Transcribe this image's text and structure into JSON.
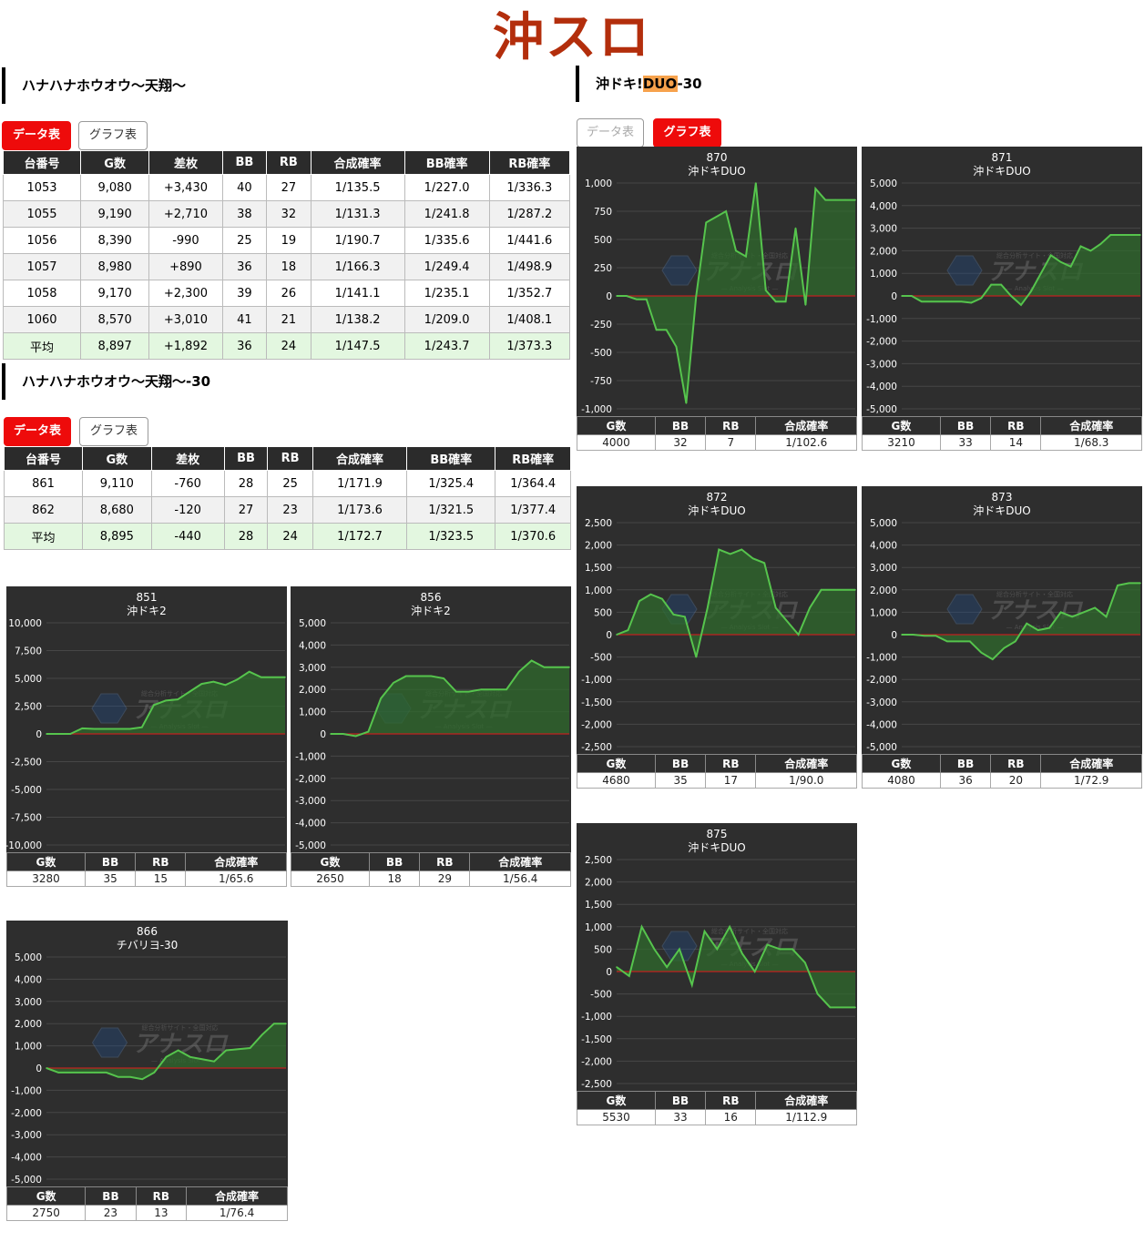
{
  "page_title": "沖スロ",
  "sections": {
    "s1": {
      "title": "ハナハナホウオウ〜天翔〜"
    },
    "s2": {
      "title": "ハナハナホウオウ〜天翔〜-30"
    },
    "s3": {
      "title_pre": "沖ドキ!",
      "title_hl": "DUO",
      "title_post": "-30"
    }
  },
  "buttons": {
    "data": "データ表示",
    "graph": "グラフ表示"
  },
  "table_headers": [
    "台番号",
    "G数",
    "差枚",
    "BB",
    "RB",
    "合成確率",
    "BB確率",
    "RB確率"
  ],
  "table1": {
    "rows": [
      [
        "1053",
        "9,080",
        "+3,430",
        "40",
        "27",
        "1/135.5",
        "1/227.0",
        "1/336.3"
      ],
      [
        "1055",
        "9,190",
        "+2,710",
        "38",
        "32",
        "1/131.3",
        "1/241.8",
        "1/287.2"
      ],
      [
        "1056",
        "8,390",
        "-990",
        "25",
        "19",
        "1/190.7",
        "1/335.6",
        "1/441.6"
      ],
      [
        "1057",
        "8,980",
        "+890",
        "36",
        "18",
        "1/166.3",
        "1/249.4",
        "1/498.9"
      ],
      [
        "1058",
        "9,170",
        "+2,300",
        "39",
        "26",
        "1/141.1",
        "1/235.1",
        "1/352.7"
      ],
      [
        "1060",
        "8,570",
        "+3,010",
        "41",
        "21",
        "1/138.2",
        "1/209.0",
        "1/408.1"
      ]
    ],
    "avg": [
      "平均",
      "8,897",
      "+1,892",
      "36",
      "24",
      "1/147.5",
      "1/243.7",
      "1/373.3"
    ]
  },
  "table2": {
    "rows": [
      [
        "861",
        "9,110",
        "-760",
        "28",
        "25",
        "1/171.9",
        "1/325.4",
        "1/364.4"
      ],
      [
        "862",
        "8,680",
        "-120",
        "27",
        "23",
        "1/173.6",
        "1/321.5",
        "1/377.4"
      ]
    ],
    "avg": [
      "平均",
      "8,895",
      "-440",
      "28",
      "24",
      "1/172.7",
      "1/323.5",
      "1/370.6"
    ]
  },
  "mini_headers": [
    "G数",
    "BB",
    "RB",
    "合成確率"
  ],
  "watermark": {
    "main": "アナスロ",
    "top": "総合分析サイト・全国対応",
    "sub": "— Analysis Slot —"
  },
  "colors": {
    "line": "#56c44d",
    "fill": "#2f6a2c",
    "zero": "#c02020",
    "card": "#2e2e2e",
    "accent_red": "#ee0b0b",
    "title": "#b32e0c"
  },
  "chart_data": [
    {
      "type": "line",
      "id": "851",
      "machine": "沖ドキ2",
      "ylim": [
        -10000,
        10000
      ],
      "yticks": [
        10000,
        7500,
        5000,
        2500,
        0,
        -2500,
        -5000,
        -7500,
        -10000
      ],
      "values": [
        0,
        0,
        0,
        500,
        450,
        450,
        450,
        450,
        600,
        2600,
        3000,
        3100,
        3800,
        4500,
        4700,
        4400,
        4900,
        5600,
        5100,
        5100,
        5100
      ],
      "stats": [
        "3280",
        "35",
        "15",
        "1/65.6"
      ]
    },
    {
      "type": "line",
      "id": "856",
      "machine": "沖ドキ2",
      "ylim": [
        -5000,
        5000
      ],
      "yticks": [
        5000,
        4000,
        3000,
        2000,
        1000,
        0,
        -1000,
        -2000,
        -3000,
        -4000,
        -5000
      ],
      "values": [
        0,
        0,
        -100,
        100,
        1600,
        2300,
        2600,
        2600,
        2600,
        2500,
        1900,
        1900,
        2000,
        2000,
        2000,
        2800,
        3300,
        3000,
        3000,
        3000
      ],
      "stats": [
        "2650",
        "18",
        "29",
        "1/56.4"
      ]
    },
    {
      "type": "line",
      "id": "866",
      "machine": "チバリヨ-30",
      "ylim": [
        -5000,
        5000
      ],
      "yticks": [
        5000,
        4000,
        3000,
        2000,
        1000,
        0,
        -1000,
        -2000,
        -3000,
        -4000,
        -5000
      ],
      "values": [
        0,
        -200,
        -200,
        -200,
        -200,
        -200,
        -400,
        -400,
        -500,
        -200,
        500,
        800,
        500,
        400,
        300,
        800,
        850,
        900,
        1500,
        2000,
        2000
      ],
      "stats": [
        "2750",
        "23",
        "13",
        "1/76.4"
      ]
    },
    {
      "type": "line",
      "id": "870",
      "machine": "沖ドキDUO",
      "ylim": [
        -1000,
        1000
      ],
      "yticks": [
        1000,
        750,
        500,
        250,
        0,
        -250,
        -500,
        -750,
        -1000
      ],
      "values": [
        0,
        0,
        -30,
        -30,
        -300,
        -300,
        -450,
        -950,
        0,
        650,
        700,
        750,
        400,
        350,
        1000,
        50,
        -50,
        -50,
        600,
        -80,
        950,
        850,
        850,
        850,
        850
      ],
      "stats": [
        "4000",
        "32",
        "7",
        "1/102.6"
      ]
    },
    {
      "type": "line",
      "id": "871",
      "machine": "沖ドキDUO",
      "ylim": [
        -5000,
        5000
      ],
      "yticks": [
        5000,
        4000,
        3000,
        2000,
        1000,
        0,
        -1000,
        -2000,
        -3000,
        -4000,
        -5000
      ],
      "values": [
        0,
        0,
        -250,
        -250,
        -250,
        -250,
        -250,
        -300,
        -100,
        500,
        500,
        0,
        -400,
        200,
        1000,
        1800,
        1500,
        1300,
        2200,
        2000,
        2300,
        2700,
        2700,
        2700,
        2700
      ],
      "stats": [
        "3210",
        "33",
        "14",
        "1/68.3"
      ]
    },
    {
      "type": "line",
      "id": "872",
      "machine": "沖ドキDUO",
      "ylim": [
        -2500,
        2500
      ],
      "yticks": [
        2500,
        2000,
        1500,
        1000,
        500,
        0,
        -500,
        -1000,
        -1500,
        -2000,
        -2500
      ],
      "values": [
        0,
        100,
        750,
        900,
        800,
        450,
        400,
        -500,
        600,
        1900,
        1800,
        1900,
        1700,
        1600,
        600,
        300,
        0,
        600,
        1000,
        1000,
        1000,
        1000
      ],
      "stats": [
        "4680",
        "35",
        "17",
        "1/90.0"
      ]
    },
    {
      "type": "line",
      "id": "873",
      "machine": "沖ドキDUO",
      "ylim": [
        -5000,
        5000
      ],
      "yticks": [
        5000,
        4000,
        3000,
        2000,
        1000,
        0,
        -1000,
        -2000,
        -3000,
        -4000,
        -5000
      ],
      "values": [
        0,
        0,
        -50,
        -50,
        -300,
        -300,
        -300,
        -800,
        -1100,
        -600,
        -300,
        500,
        200,
        300,
        1000,
        800,
        1000,
        1200,
        800,
        2200,
        2300,
        2300
      ],
      "stats": [
        "4080",
        "36",
        "20",
        "1/72.9"
      ]
    },
    {
      "type": "line",
      "id": "875",
      "machine": "沖ドキDUO",
      "ylim": [
        -2500,
        2500
      ],
      "yticks": [
        2500,
        2000,
        1500,
        1000,
        500,
        0,
        -500,
        -1000,
        -1500,
        -2000,
        -2500
      ],
      "values": [
        100,
        -100,
        1000,
        500,
        100,
        500,
        -300,
        900,
        500,
        1000,
        400,
        0,
        600,
        500,
        500,
        200,
        -500,
        -800,
        -800,
        -800
      ],
      "stats": [
        "5530",
        "33",
        "16",
        "1/112.9"
      ]
    }
  ]
}
